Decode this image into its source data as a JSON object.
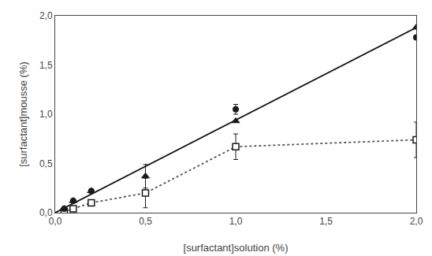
{
  "chart_data": {
    "type": "scatter",
    "x_label": "[surfactant]solution (%)",
    "y_label": "[surfactant]mousse (%)",
    "xlim": [
      0,
      2.0
    ],
    "ylim": [
      0,
      2.0
    ],
    "xticks": [
      {
        "value": 0.0,
        "label": "0,0"
      },
      {
        "value": 0.5,
        "label": "0,5"
      },
      {
        "value": 1.0,
        "label": "1,0"
      },
      {
        "value": 1.5,
        "label": "1,5"
      },
      {
        "value": 2.0,
        "label": "2,0"
      }
    ],
    "yticks": [
      {
        "value": 0.0,
        "label": "0,0"
      },
      {
        "value": 0.5,
        "label": "0,5"
      },
      {
        "value": 1.0,
        "label": "1,0"
      },
      {
        "value": 1.5,
        "label": "1,5"
      },
      {
        "value": 2.0,
        "label": "2,0"
      }
    ],
    "grid": false,
    "series": [
      {
        "type": "line",
        "color": "#111111",
        "line_style": "solid",
        "x": [
          0.0,
          2.0
        ],
        "values": [
          0.0,
          1.88
        ]
      },
      {
        "type": "line",
        "color": "#555555",
        "line_style": "dot",
        "x": [
          0.05,
          0.1,
          0.2,
          0.5,
          1.0,
          2.0
        ],
        "values": [
          0.01,
          0.04,
          0.1,
          0.2,
          0.67,
          0.74
        ]
      },
      {
        "type": "scatter",
        "color": "#1a1a1a",
        "marker": "square-open",
        "x": [
          0.05,
          0.1,
          0.2,
          0.5,
          1.0,
          2.0
        ],
        "values": [
          0.01,
          0.04,
          0.1,
          0.2,
          0.67,
          0.74
        ],
        "errors": [
          0.0,
          0.0,
          0.0,
          0.15,
          0.13,
          0.18
        ]
      },
      {
        "type": "scatter",
        "color": "#1a1a1a",
        "marker": "triangle-up",
        "x": [
          0.05,
          0.1,
          0.2,
          0.5,
          1.0,
          2.0
        ],
        "values": [
          0.04,
          0.12,
          0.22,
          0.37,
          0.93,
          1.88
        ],
        "errors": [
          0.0,
          0.0,
          0.0,
          0.12,
          0.0,
          0.0
        ]
      },
      {
        "type": "scatter",
        "color": "#1a1a1a",
        "marker": "circle",
        "x": [
          0.05,
          0.1,
          0.2,
          1.0,
          2.0
        ],
        "values": [
          0.04,
          0.12,
          0.22,
          1.05,
          1.78
        ],
        "errors": [
          0.0,
          0.0,
          0.0,
          0.05,
          0.0
        ]
      }
    ]
  }
}
